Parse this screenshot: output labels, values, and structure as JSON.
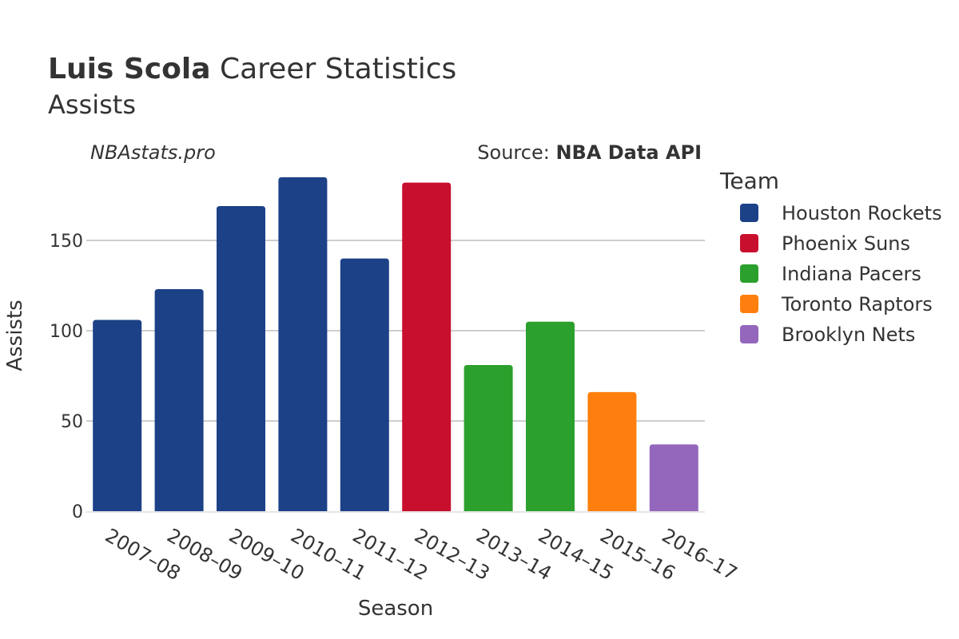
{
  "header": {
    "player": "Luis Scola",
    "title_rest": "Career Statistics",
    "subtitle": "Assists"
  },
  "credit": {
    "site": "NBAstats.pro",
    "source_label": "Source:",
    "source_name": "NBA Data API"
  },
  "legend": {
    "title": "Team"
  },
  "chart_data": {
    "type": "bar",
    "title": "Luis Scola Career Statistics",
    "subtitle": "Assists",
    "xlabel": "Season",
    "ylabel": "Assists",
    "ylim": [
      0,
      190
    ],
    "yticks": [
      0,
      50,
      100,
      150
    ],
    "grid": true,
    "legend_position": "right",
    "categories": [
      "2007–08",
      "2008–09",
      "2009–10",
      "2010–11",
      "2011–12",
      "2012–13",
      "2013–14",
      "2014–15",
      "2015–16",
      "2016–17"
    ],
    "values": [
      106,
      123,
      169,
      185,
      140,
      182,
      81,
      105,
      66,
      37
    ],
    "teams": [
      "Houston Rockets",
      "Houston Rockets",
      "Houston Rockets",
      "Houston Rockets",
      "Houston Rockets",
      "Phoenix Suns",
      "Indiana Pacers",
      "Indiana Pacers",
      "Toronto Raptors",
      "Brooklyn Nets"
    ],
    "series": [
      {
        "name": "Houston Rockets",
        "color": "#1c4187"
      },
      {
        "name": "Phoenix Suns",
        "color": "#c8102e"
      },
      {
        "name": "Indiana Pacers",
        "color": "#2ca02c"
      },
      {
        "name": "Toronto Raptors",
        "color": "#ff7f0e"
      },
      {
        "name": "Brooklyn Nets",
        "color": "#9467bd"
      }
    ]
  }
}
